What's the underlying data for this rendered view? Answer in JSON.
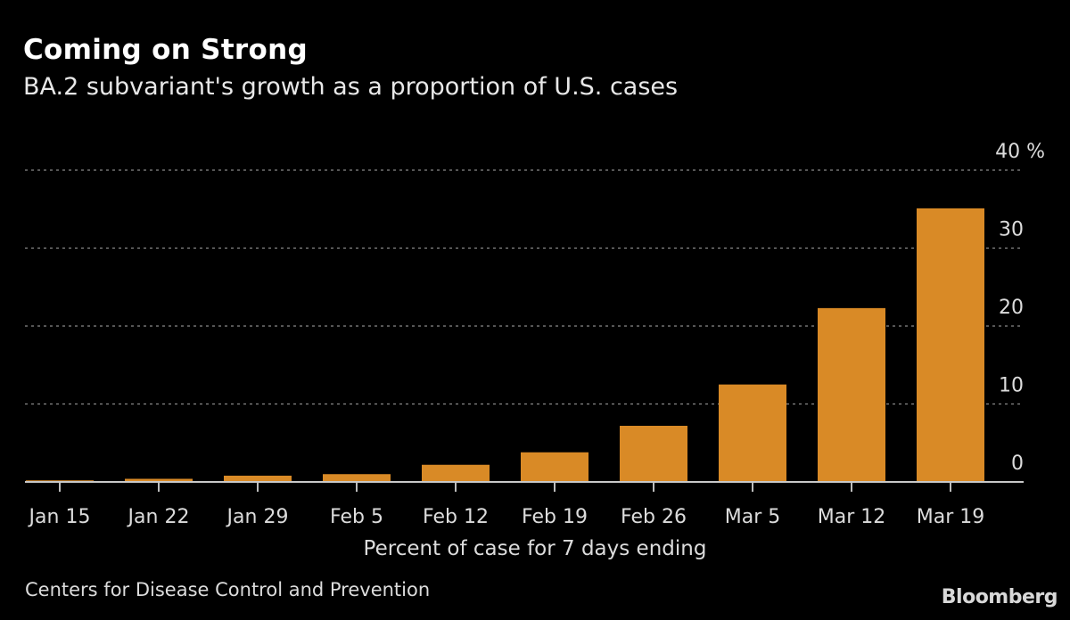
{
  "chart_data": {
    "type": "bar",
    "title": "Coming on Strong",
    "subtitle": "BA.2 subvariant's growth as a proportion of U.S. cases",
    "categories": [
      "Jan 15",
      "Jan 22",
      "Jan 29",
      "Feb 5",
      "Feb 12",
      "Feb 19",
      "Feb 26",
      "Mar 5",
      "Mar 12",
      "Mar 19"
    ],
    "values": [
      0.2,
      0.4,
      0.8,
      1.0,
      2.2,
      3.8,
      7.2,
      12.5,
      22.3,
      35.1
    ],
    "xlabel": "Percent of case for 7 days ending",
    "ylabel": "",
    "ylim": [
      0,
      40
    ],
    "yticks": [
      0,
      10,
      20,
      30,
      40
    ],
    "ytick_labels": [
      "0",
      "10",
      "20",
      "30",
      "40 %"
    ],
    "y_axis_side": "right",
    "grid": true,
    "legend": "none",
    "bar_color": "#d98a26",
    "source": "Centers for Disease Control and Prevention",
    "brand": "Bloomberg"
  }
}
